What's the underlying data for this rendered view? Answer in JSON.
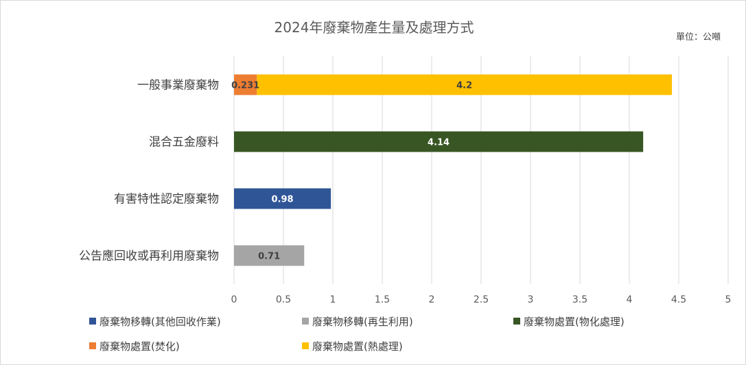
{
  "chart_data": {
    "type": "bar",
    "orientation": "horizontal",
    "stacked": true,
    "title": "2024年廢棄物產生量及處理方式",
    "unit_label": "單位：公噸",
    "categories": [
      "一般事業廢棄物",
      "混合五金廢料",
      "有害特性認定廢棄物",
      "公告應回收或再利用廢棄物"
    ],
    "xlim": [
      0,
      5
    ],
    "xticks": [
      "0",
      "0.5",
      "1",
      "1.5",
      "2",
      "2.5",
      "3",
      "3.5",
      "4",
      "4.5",
      "5"
    ],
    "grid": "vertical",
    "legend_position": "bottom",
    "series": [
      {
        "name": "廢棄物移轉(其他回收作業)",
        "color": "#2F5597",
        "values": [
          null,
          null,
          0.98,
          null
        ],
        "labels": [
          null,
          null,
          "0.98",
          null
        ]
      },
      {
        "name": "廢棄物移轉(再生利用)",
        "color": "#A5A5A5",
        "values": [
          null,
          null,
          null,
          0.71
        ],
        "labels": [
          null,
          null,
          null,
          "0.71"
        ]
      },
      {
        "name": "廢棄物處置(物化處理)",
        "color": "#375623",
        "values": [
          null,
          4.14,
          null,
          null
        ],
        "labels": [
          null,
          "4.14",
          null,
          null
        ]
      },
      {
        "name": "廢棄物處置(焚化)",
        "color": "#ED7D31",
        "values": [
          0.231,
          null,
          null,
          null
        ],
        "labels": [
          "0.231",
          null,
          null,
          null
        ]
      },
      {
        "name": "廢棄物處置(熱處理)",
        "color": "#FFC000",
        "values": [
          4.2,
          null,
          null,
          null
        ],
        "labels": [
          "4.2",
          null,
          null,
          null
        ]
      }
    ]
  }
}
